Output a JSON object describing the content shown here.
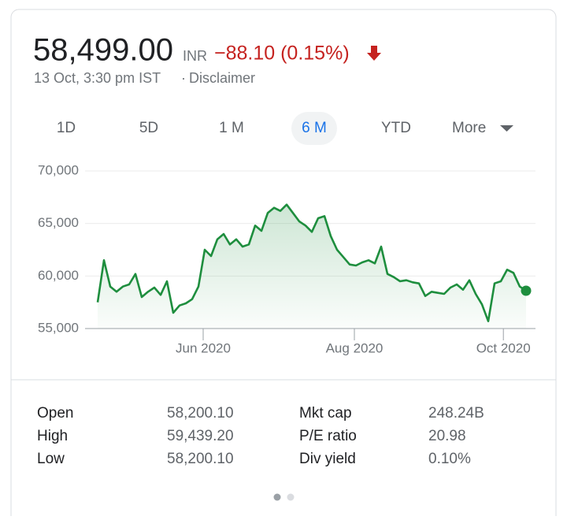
{
  "header": {
    "price": "58,499.00",
    "currency": "INR",
    "change": "−88.10 (0.15%)",
    "timestamp": "13 Oct, 3:30 pm IST",
    "separator": "·",
    "disclaimer": "Disclaimer"
  },
  "tabs": [
    "1D",
    "5D",
    "1 M",
    "6 M",
    "YTD",
    "More"
  ],
  "selected_tab": 3,
  "chart_data": {
    "type": "line",
    "color": "#1e8e3e",
    "x": [
      0,
      1,
      2,
      3,
      4,
      5,
      6,
      7,
      8,
      9,
      10,
      11,
      12,
      13,
      14,
      15,
      16,
      17,
      18,
      19,
      20,
      21,
      22,
      23,
      24,
      25,
      26,
      27,
      28,
      29,
      30,
      31,
      32,
      33,
      34,
      35,
      36,
      37,
      38,
      39,
      40,
      41,
      42,
      43,
      44,
      45,
      46,
      47,
      48,
      49,
      50,
      51,
      52,
      53,
      54,
      55,
      56,
      57,
      58,
      59,
      60,
      61,
      62,
      63,
      64,
      65,
      66,
      67,
      68
    ],
    "values": [
      57500,
      61500,
      59000,
      58500,
      59000,
      59200,
      60200,
      58000,
      58500,
      58900,
      58200,
      59500,
      56500,
      57200,
      57400,
      57800,
      59000,
      62500,
      61900,
      63500,
      64000,
      63000,
      63500,
      62800,
      63000,
      64800,
      64300,
      66000,
      66500,
      66200,
      66800,
      66000,
      65200,
      64800,
      64200,
      65500,
      65700,
      63800,
      62500,
      61800,
      61100,
      61000,
      61300,
      61500,
      61200,
      62800,
      60200,
      59900,
      59500,
      59600,
      59400,
      59300,
      58100,
      58500,
      58400,
      58300,
      58900,
      59200,
      58700,
      59600,
      58300,
      57300,
      55700,
      59300,
      59500,
      60600,
      60300,
      59000,
      58600
    ],
    "xlim": [
      -2,
      69.5
    ],
    "xticks": [
      {
        "value": 16.75,
        "label": "Jun 2020"
      },
      {
        "value": 40.75,
        "label": "Aug 2020"
      },
      {
        "value": 64.4,
        "label": "Oct 2020"
      }
    ],
    "ylim": [
      55000,
      70000
    ],
    "yticks": [
      {
        "value": 55000,
        "label": "55,000"
      },
      {
        "value": 60000,
        "label": "60,000"
      },
      {
        "value": 65000,
        "label": "65,000"
      },
      {
        "value": 70000,
        "label": "70,000"
      }
    ],
    "grid": true
  },
  "stats": {
    "rows": [
      [
        "Open",
        "58,200.10",
        "Mkt cap",
        "248.24B"
      ],
      [
        "High",
        "59,439.20",
        "P/E ratio",
        "20.98"
      ],
      [
        "Low",
        "58,200.10",
        "Div yield",
        "0.10%"
      ]
    ]
  }
}
